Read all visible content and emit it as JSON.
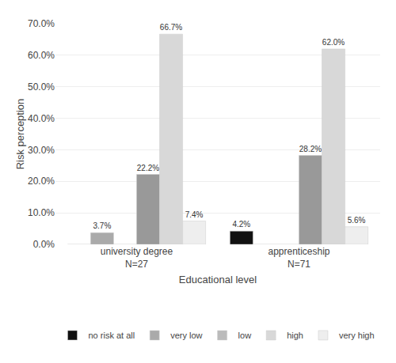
{
  "chart_data": {
    "type": "bar",
    "xlabel": "Educational level",
    "ylabel": "Risk perception",
    "categories": [
      "university degree\nN=27",
      "apprenticeship\nN=71"
    ],
    "series": [
      {
        "name": "no risk at all",
        "color": "#111111",
        "values": [
          0.0,
          4.2
        ],
        "value_labels": [
          null,
          "4.2%"
        ]
      },
      {
        "name": "very low",
        "color": "#aaaaaa",
        "values": [
          3.7,
          0.0
        ],
        "value_labels": [
          "3.7%",
          null
        ]
      },
      {
        "name": "low",
        "color": "#bbbbbb",
        "values": [
          0.0,
          0.0
        ],
        "value_labels": [
          null,
          null
        ]
      },
      {
        "color": "#999999",
        "values": [
          22.2,
          28.2
        ],
        "value_labels": [
          "22.2%",
          "28.2%"
        ]
      },
      {
        "name": "high",
        "color": "#d8d8d8",
        "values": [
          66.7,
          62.0
        ],
        "value_labels": [
          "66.7%",
          "62.0%"
        ]
      },
      {
        "name": "very high",
        "color": "#eeeeee",
        "values": [
          7.4,
          5.6
        ],
        "value_labels": [
          "7.4%",
          "5.6%"
        ]
      }
    ],
    "ylim": [
      0,
      70
    ],
    "yticks": [
      {
        "value": 0,
        "label": "0.0%"
      },
      {
        "value": 10,
        "label": "10.0%"
      },
      {
        "value": 20,
        "label": "20.0%"
      },
      {
        "value": 30,
        "label": "30.0%"
      },
      {
        "value": 40,
        "label": "40.0%"
      },
      {
        "value": 50,
        "label": "50.0%"
      },
      {
        "value": 60,
        "label": "60.0%"
      },
      {
        "value": 70,
        "label": "70.0%"
      }
    ],
    "grid": true,
    "data_labels": true,
    "legend": "bottom"
  }
}
